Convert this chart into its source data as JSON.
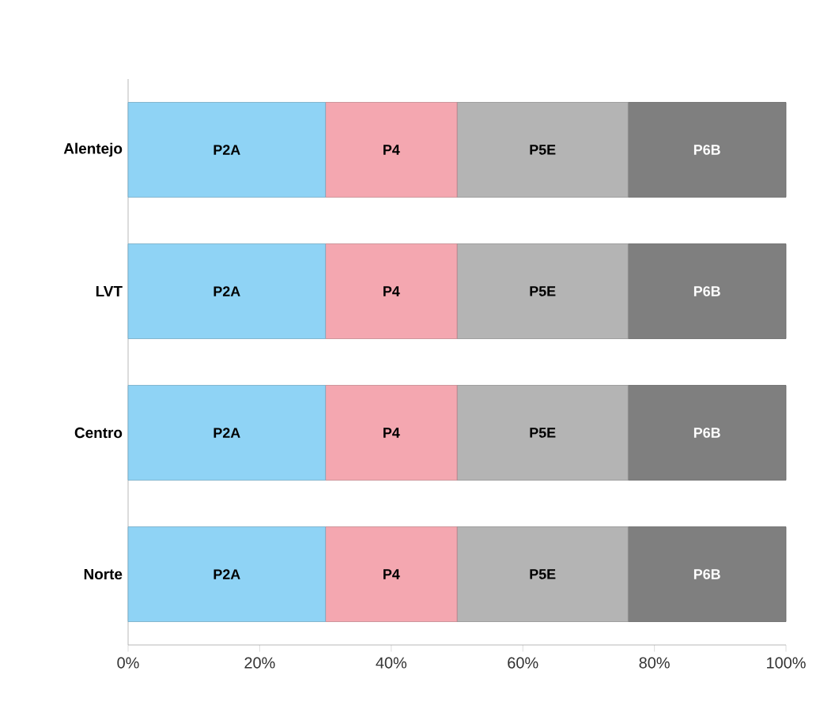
{
  "chart_data": {
    "type": "bar",
    "orientation": "horizontal",
    "stacked": true,
    "categories": [
      "Alentejo",
      "LVT",
      "Centro",
      "Norte"
    ],
    "series": [
      {
        "name": "P2A",
        "color": "#8fd3f5",
        "values": [
          30,
          30,
          30,
          30
        ]
      },
      {
        "name": "P4",
        "color": "#f4a7b0",
        "values": [
          20,
          20,
          20,
          20
        ]
      },
      {
        "name": "P5E",
        "color": "#b4b4b4",
        "values": [
          26,
          26,
          26,
          26
        ]
      },
      {
        "name": "P6B",
        "color": "#7f7f7f",
        "values": [
          24,
          24,
          24,
          24
        ]
      }
    ],
    "xlim": [
      0,
      100
    ],
    "xticks": [
      {
        "value": 0,
        "label": "0%"
      },
      {
        "value": 20,
        "label": "20%"
      },
      {
        "value": 40,
        "label": "40%"
      },
      {
        "value": 60,
        "label": "60%"
      },
      {
        "value": 80,
        "label": "80%"
      },
      {
        "value": 100,
        "label": "100%"
      }
    ]
  }
}
